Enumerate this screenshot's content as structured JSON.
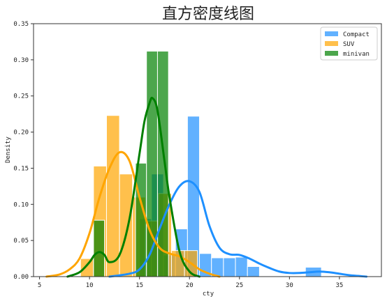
{
  "chart_data": {
    "type": "bar",
    "title": "直方密度线图",
    "xlabel": "cty",
    "ylabel": "Density",
    "xlim": [
      4.4,
      39.2
    ],
    "ylim": [
      0,
      0.35
    ],
    "xticks": [
      5,
      10,
      15,
      20,
      25,
      30,
      35
    ],
    "yticks": [
      0.0,
      0.05,
      0.1,
      0.15,
      0.2,
      0.25,
      0.3,
      0.35
    ],
    "ytick_labels": [
      "0.00",
      "0.05",
      "0.10",
      "0.15",
      "0.20",
      "0.25",
      "0.30",
      "0.35"
    ],
    "grid": false,
    "legend_position": "top-right",
    "series": [
      {
        "name": "Compact",
        "hist_color": "#1e90ff",
        "kde_color": "#1e90ff",
        "bins": [
          {
            "x0": 15.0,
            "x1": 16.2,
            "density": 0.08
          },
          {
            "x0": 16.2,
            "x1": 17.4,
            "density": 0.142
          },
          {
            "x0": 17.4,
            "x1": 18.6,
            "density": 0.03
          },
          {
            "x0": 18.6,
            "x1": 19.8,
            "density": 0.066
          },
          {
            "x0": 19.8,
            "x1": 21.0,
            "density": 0.222
          },
          {
            "x0": 21.0,
            "x1": 22.2,
            "density": 0.032
          },
          {
            "x0": 22.2,
            "x1": 23.4,
            "density": 0.026
          },
          {
            "x0": 23.4,
            "x1": 24.6,
            "density": 0.026
          },
          {
            "x0": 24.6,
            "x1": 25.8,
            "density": 0.027
          },
          {
            "x0": 25.8,
            "x1": 27.0,
            "density": 0.014
          },
          {
            "x0": 31.6,
            "x1": 33.2,
            "density": 0.013
          }
        ],
        "kde": [
          [
            12.0,
            0.0
          ],
          [
            14.0,
            0.004
          ],
          [
            15.0,
            0.01
          ],
          [
            16.0,
            0.03
          ],
          [
            17.0,
            0.066
          ],
          [
            18.0,
            0.1
          ],
          [
            19.0,
            0.125
          ],
          [
            20.0,
            0.132
          ],
          [
            21.0,
            0.117
          ],
          [
            22.0,
            0.07
          ],
          [
            23.0,
            0.04
          ],
          [
            24.0,
            0.031
          ],
          [
            25.0,
            0.03
          ],
          [
            26.0,
            0.025
          ],
          [
            27.0,
            0.018
          ],
          [
            28.0,
            0.012
          ],
          [
            29.0,
            0.007
          ],
          [
            30.0,
            0.005
          ],
          [
            31.0,
            0.005
          ],
          [
            32.0,
            0.006
          ],
          [
            33.0,
            0.007
          ],
          [
            34.0,
            0.006
          ],
          [
            35.0,
            0.004
          ],
          [
            36.0,
            0.002
          ],
          [
            37.7,
            0.0
          ]
        ]
      },
      {
        "name": "SUV",
        "hist_color": "#ffa500",
        "kde_color": "#ffa500",
        "bins": [
          {
            "x0": 9.1,
            "x1": 10.4,
            "density": 0.025
          },
          {
            "x0": 10.4,
            "x1": 11.7,
            "density": 0.153
          },
          {
            "x0": 11.7,
            "x1": 13.0,
            "density": 0.223
          },
          {
            "x0": 13.0,
            "x1": 14.3,
            "density": 0.142
          },
          {
            "x0": 14.3,
            "x1": 15.6,
            "density": 0.11
          },
          {
            "x0": 15.6,
            "x1": 16.9,
            "density": 0.077
          },
          {
            "x0": 16.9,
            "x1": 18.2,
            "density": 0.115
          },
          {
            "x0": 18.2,
            "x1": 19.5,
            "density": 0.036
          },
          {
            "x0": 19.5,
            "x1": 20.8,
            "density": 0.036
          }
        ],
        "kde": [
          [
            5.7,
            0.0
          ],
          [
            7.0,
            0.003
          ],
          [
            8.0,
            0.01
          ],
          [
            9.0,
            0.025
          ],
          [
            10.0,
            0.06
          ],
          [
            11.0,
            0.11
          ],
          [
            12.0,
            0.15
          ],
          [
            13.0,
            0.172
          ],
          [
            14.0,
            0.16
          ],
          [
            15.0,
            0.11
          ],
          [
            16.0,
            0.065
          ],
          [
            17.0,
            0.04
          ],
          [
            18.0,
            0.032
          ],
          [
            19.0,
            0.028
          ],
          [
            20.0,
            0.02
          ],
          [
            21.0,
            0.01
          ],
          [
            22.0,
            0.004
          ],
          [
            23.0,
            0.0
          ]
        ]
      },
      {
        "name": "minivan",
        "hist_color": "#008000",
        "kde_color": "#008000",
        "bins": [
          {
            "x0": 10.4,
            "x1": 11.5,
            "density": 0.078
          },
          {
            "x0": 14.6,
            "x1": 15.7,
            "density": 0.157
          },
          {
            "x0": 15.7,
            "x1": 16.8,
            "density": 0.312
          },
          {
            "x0": 16.8,
            "x1": 17.9,
            "density": 0.312
          }
        ],
        "kde": [
          [
            7.8,
            0.0
          ],
          [
            9.0,
            0.006
          ],
          [
            10.0,
            0.02
          ],
          [
            10.5,
            0.03
          ],
          [
            11.0,
            0.034
          ],
          [
            11.5,
            0.03
          ],
          [
            12.0,
            0.02
          ],
          [
            13.0,
            0.03
          ],
          [
            14.0,
            0.08
          ],
          [
            15.0,
            0.17
          ],
          [
            15.5,
            0.215
          ],
          [
            16.0,
            0.24
          ],
          [
            16.3,
            0.247
          ],
          [
            16.8,
            0.23
          ],
          [
            17.5,
            0.16
          ],
          [
            18.0,
            0.11
          ],
          [
            19.0,
            0.035
          ],
          [
            20.0,
            0.007
          ],
          [
            21.0,
            0.0
          ]
        ]
      }
    ]
  }
}
